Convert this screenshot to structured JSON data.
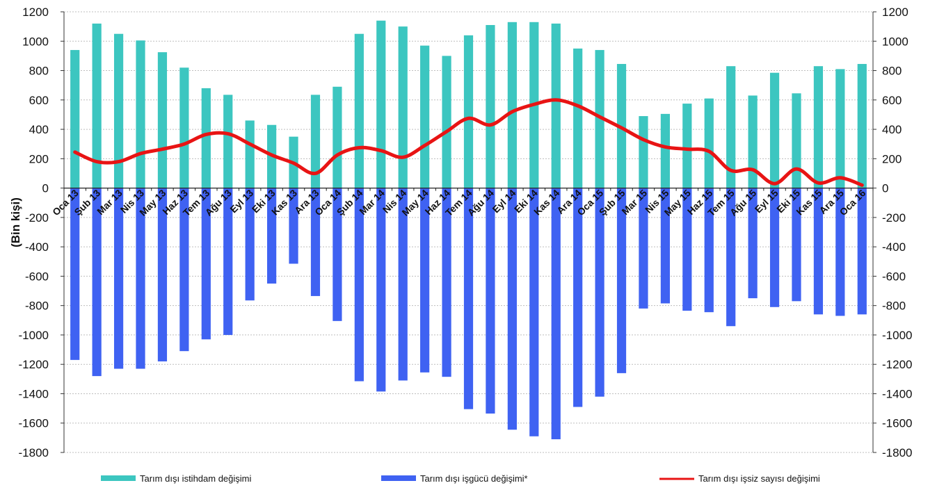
{
  "chart_data": {
    "type": "bar",
    "ylabel": "(Bin kişi)",
    "ylim": [
      -1800,
      1200
    ],
    "y_ticks": [
      1200,
      1000,
      800,
      600,
      400,
      200,
      0,
      -200,
      -400,
      -600,
      -800,
      -1000,
      -1200,
      -1400,
      -1600,
      -1800
    ],
    "secondary_y_ticks": [
      1200,
      1000,
      800,
      600,
      400,
      200,
      0,
      -200,
      -400,
      -600,
      -800,
      -1000,
      -1200,
      -1400,
      -1600,
      -1800
    ],
    "grid": true,
    "legend_position": "bottom",
    "categories": [
      "Oca 13",
      "Şub 13",
      "Mar 13",
      "Nis 13",
      "May 13",
      "Haz 13",
      "Tem 13",
      "Ağu 13",
      "Eyl 13",
      "Eki 13",
      "Kas 13",
      "Ara 13",
      "Oca 14",
      "Şub 14",
      "Mar 14",
      "Nis 14",
      "May 14",
      "Haz 14",
      "Tem 14",
      "Ağu 14",
      "Eyl 14",
      "Eki 14",
      "Kas 14",
      "Ara 14",
      "Oca 15",
      "Şub 15",
      "Mar 15",
      "Nis 15",
      "May 15",
      "Haz 15",
      "Tem 15",
      "Ağu 15",
      "Eyl 15",
      "Eki 15",
      "Kas 15",
      "Ara 15",
      "Oca 16"
    ],
    "series": [
      {
        "name": "Tarım dışı istihdam değişimi",
        "kind": "bar",
        "color": "#3cc6c0",
        "values": [
          940,
          1120,
          1050,
          1005,
          925,
          820,
          680,
          635,
          460,
          430,
          350,
          635,
          690,
          1050,
          1140,
          1100,
          970,
          900,
          1040,
          1110,
          1130,
          1130,
          1120,
          950,
          940,
          845,
          490,
          505,
          575,
          610,
          830,
          630,
          785,
          645,
          830,
          810,
          845
        ]
      },
      {
        "name": "Tarım dışı işgücü değişimi*",
        "kind": "bar",
        "color": "#3f62f2",
        "values": [
          -1170,
          -1280,
          -1230,
          -1230,
          -1180,
          -1110,
          -1030,
          -1000,
          -765,
          -650,
          -515,
          -735,
          -905,
          -1315,
          -1385,
          -1310,
          -1255,
          -1285,
          -1505,
          -1535,
          -1645,
          -1690,
          -1710,
          -1490,
          -1420,
          -1260,
          -820,
          -785,
          -835,
          -845,
          -940,
          -750,
          -810,
          -770,
          -860,
          -870,
          -860
        ]
      },
      {
        "name": "Tarım dışı işsiz sayısı değişimi",
        "kind": "line",
        "color": "#e81414",
        "values": [
          245,
          180,
          180,
          235,
          265,
          300,
          365,
          370,
          300,
          225,
          170,
          100,
          225,
          275,
          255,
          210,
          290,
          385,
          475,
          430,
          520,
          570,
          600,
          560,
          485,
          410,
          330,
          280,
          265,
          250,
          120,
          125,
          30,
          130,
          35,
          70,
          20
        ]
      }
    ]
  }
}
